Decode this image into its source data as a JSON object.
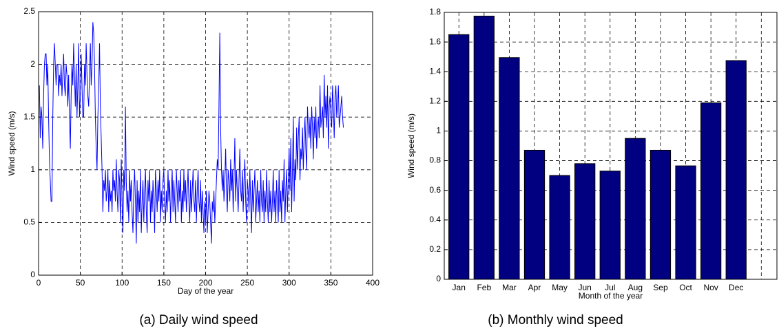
{
  "chart_data": [
    {
      "type": "line",
      "caption": "(a) Daily wind speed",
      "x_label": "Day of the year",
      "y_label": "Wind speed (m/s)",
      "xlim": [
        0,
        400
      ],
      "xticks": [
        0,
        50,
        100,
        150,
        200,
        250,
        300,
        350,
        400
      ],
      "ylim": [
        0,
        2.5
      ],
      "yticks": [
        0,
        0.5,
        1,
        1.5,
        2,
        2.5
      ],
      "grid": true,
      "color": "#0000ff",
      "x": [
        1,
        2,
        3,
        4,
        5,
        6,
        7,
        8,
        9,
        10,
        11,
        12,
        13,
        14,
        15,
        16,
        17,
        18,
        19,
        20,
        21,
        22,
        23,
        24,
        25,
        26,
        27,
        28,
        29,
        30,
        31,
        32,
        33,
        34,
        35,
        36,
        37,
        38,
        39,
        40,
        41,
        42,
        43,
        44,
        45,
        46,
        47,
        48,
        49,
        50,
        51,
        52,
        53,
        54,
        55,
        56,
        57,
        58,
        59,
        60,
        61,
        62,
        63,
        64,
        65,
        66,
        67,
        68,
        69,
        70,
        71,
        72,
        73,
        74,
        75,
        76,
        77,
        78,
        79,
        80,
        81,
        82,
        83,
        84,
        85,
        86,
        87,
        88,
        89,
        90,
        91,
        92,
        93,
        94,
        95,
        96,
        97,
        98,
        99,
        100,
        101,
        102,
        103,
        104,
        105,
        106,
        107,
        108,
        109,
        110,
        111,
        112,
        113,
        114,
        115,
        116,
        117,
        118,
        119,
        120,
        121,
        122,
        123,
        124,
        125,
        126,
        127,
        128,
        129,
        130,
        131,
        132,
        133,
        134,
        135,
        136,
        137,
        138,
        139,
        140,
        141,
        142,
        143,
        144,
        145,
        146,
        147,
        148,
        149,
        150,
        151,
        152,
        153,
        154,
        155,
        156,
        157,
        158,
        159,
        160,
        161,
        162,
        163,
        164,
        165,
        166,
        167,
        168,
        169,
        170,
        171,
        172,
        173,
        174,
        175,
        176,
        177,
        178,
        179,
        180,
        181,
        182,
        183,
        184,
        185,
        186,
        187,
        188,
        189,
        190,
        191,
        192,
        193,
        194,
        195,
        196,
        197,
        198,
        199,
        200,
        201,
        202,
        203,
        204,
        205,
        206,
        207,
        208,
        209,
        210,
        211,
        212,
        213,
        214,
        215,
        216,
        217,
        218,
        219,
        220,
        221,
        222,
        223,
        224,
        225,
        226,
        227,
        228,
        229,
        230,
        231,
        232,
        233,
        234,
        235,
        236,
        237,
        238,
        239,
        240,
        241,
        242,
        243,
        244,
        245,
        246,
        247,
        248,
        249,
        250,
        251,
        252,
        253,
        254,
        255,
        256,
        257,
        258,
        259,
        260,
        261,
        262,
        263,
        264,
        265,
        266,
        267,
        268,
        269,
        270,
        271,
        272,
        273,
        274,
        275,
        276,
        277,
        278,
        279,
        280,
        281,
        282,
        283,
        284,
        285,
        286,
        287,
        288,
        289,
        290,
        291,
        292,
        293,
        294,
        295,
        296,
        297,
        298,
        299,
        300,
        301,
        302,
        303,
        304,
        305,
        306,
        307,
        308,
        309,
        310,
        311,
        312,
        313,
        314,
        315,
        316,
        317,
        318,
        319,
        320,
        321,
        322,
        323,
        324,
        325,
        326,
        327,
        328,
        329,
        330,
        331,
        332,
        333,
        334,
        335,
        336,
        337,
        338,
        339,
        340,
        341,
        342,
        343,
        344,
        345,
        346,
        347,
        348,
        349,
        350,
        351,
        352,
        353,
        354,
        355,
        356,
        357,
        358,
        359,
        360,
        361,
        362,
        363,
        364,
        365
      ],
      "values": [
        1.8,
        1.3,
        1.6,
        1.5,
        1.2,
        1.7,
        2.0,
        2.1,
        2.1,
        1.8,
        2.0,
        1.5,
        1.1,
        0.9,
        0.7,
        0.7,
        1.5,
        2.0,
        2.2,
        2.0,
        1.8,
        2.0,
        2.0,
        1.7,
        1.9,
        1.8,
        2.0,
        1.7,
        1.9,
        2.1,
        1.8,
        1.7,
        2.0,
        1.9,
        1.6,
        1.9,
        1.5,
        1.2,
        1.7,
        2.0,
        1.8,
        2.2,
        1.9,
        1.6,
        2.0,
        1.5,
        1.8,
        2.2,
        1.5,
        1.7,
        2.1,
        1.8,
        1.5,
        1.5,
        2.0,
        1.8,
        2.2,
        1.9,
        1.7,
        1.6,
        1.9,
        2.2,
        1.8,
        2.0,
        2.4,
        2.3,
        2.0,
        1.5,
        1.2,
        1.0,
        1.5,
        1.8,
        2.2,
        1.6,
        1.3,
        1.0,
        0.6,
        0.9,
        0.8,
        1.0,
        0.7,
        0.8,
        1.0,
        0.6,
        0.9,
        0.7,
        0.8,
        0.6,
        1.0,
        0.8,
        0.9,
        0.7,
        1.1,
        0.8,
        0.6,
        1.0,
        0.9,
        0.5,
        1.1,
        0.7,
        0.4,
        1.0,
        0.8,
        1.6,
        0.9,
        0.6,
        0.8,
        0.5,
        1.0,
        0.7,
        0.9,
        0.6,
        0.4,
        0.8,
        1.0,
        0.7,
        0.3,
        0.9,
        0.5,
        0.8,
        0.6,
        1.0,
        0.4,
        0.7,
        0.9,
        0.5,
        0.8,
        1.0,
        0.6,
        0.4,
        0.9,
        0.7,
        1.0,
        0.5,
        0.8,
        0.6,
        0.9,
        0.7,
        0.4,
        1.0,
        0.8,
        0.6,
        0.9,
        0.7,
        1.0,
        0.5,
        0.8,
        0.6,
        0.9,
        1.0,
        0.7,
        0.5,
        0.8,
        0.6,
        1.0,
        0.7,
        0.9,
        0.5,
        0.8,
        1.0,
        0.6,
        0.9,
        0.7,
        0.5,
        1.0,
        0.8,
        0.6,
        0.9,
        0.7,
        1.0,
        0.5,
        0.8,
        0.6,
        1.0,
        0.7,
        0.9,
        0.6,
        0.8,
        1.0,
        0.7,
        0.5,
        0.9,
        0.6,
        0.8,
        1.0,
        0.7,
        0.6,
        0.9,
        0.5,
        0.8,
        1.0,
        0.7,
        0.6,
        0.9,
        0.5,
        0.8,
        0.6,
        0.4,
        0.7,
        0.5,
        0.8,
        0.4,
        0.6,
        0.8,
        0.7,
        0.5,
        0.3,
        0.7,
        0.6,
        0.8,
        0.5,
        0.7,
        0.9,
        1.1,
        1.0,
        1.6,
        2.3,
        1.4,
        1.0,
        0.8,
        1.0,
        0.7,
        0.9,
        1.2,
        0.8,
        0.6,
        1.0,
        0.9,
        0.7,
        1.1,
        0.8,
        1.0,
        0.6,
        0.9,
        1.3,
        0.7,
        1.0,
        0.8,
        0.6,
        0.9,
        1.2,
        0.8,
        0.7,
        1.0,
        0.6,
        0.9,
        1.1,
        0.7,
        0.5,
        0.9,
        0.8,
        0.6,
        1.0,
        0.7,
        0.4,
        0.9,
        0.6,
        0.8,
        1.0,
        0.5,
        0.7,
        0.9,
        0.6,
        0.8,
        0.5,
        1.0,
        0.7,
        0.6,
        0.9,
        0.5,
        0.8,
        0.6,
        1.0,
        0.7,
        0.5,
        0.9,
        0.6,
        0.8,
        0.5,
        0.7,
        1.0,
        0.6,
        0.8,
        0.5,
        0.9,
        0.7,
        0.5,
        1.0,
        0.6,
        0.8,
        0.5,
        0.9,
        0.7,
        1.1,
        0.5,
        0.8,
        1.0,
        0.6,
        0.9,
        1.2,
        0.8,
        1.3,
        0.6,
        1.0,
        1.5,
        0.7,
        1.1,
        0.9,
        1.4,
        1.0,
        1.3,
        1.5,
        0.9,
        1.2,
        1.1,
        1.4,
        1.0,
        1.3,
        1.5,
        1.2,
        1.0,
        1.6,
        1.4,
        1.3,
        1.5,
        1.2,
        1.6,
        1.4,
        1.1,
        1.5,
        1.3,
        1.6,
        1.2,
        1.4,
        1.5,
        1.3,
        1.8,
        1.4,
        1.5,
        1.6,
        1.3,
        1.9,
        1.5,
        1.7,
        1.4,
        1.8,
        1.2,
        1.6,
        1.7,
        1.5,
        1.4,
        1.8,
        1.6,
        1.3,
        1.7,
        1.8,
        1.5,
        1.6,
        1.8,
        1.4,
        1.5,
        1.6,
        1.7,
        1.5,
        1.4
      ]
    },
    {
      "type": "bar",
      "caption": "(b) Monthly wind speed",
      "x_label": "Month of the year",
      "y_label": "Wind speed (m/s)",
      "categories": [
        "Jan",
        "Feb",
        "Mar",
        "Apr",
        "May",
        "Jun",
        "Jul",
        "Aug",
        "Sep",
        "Oct",
        "Nov",
        "Dec"
      ],
      "values": [
        1.65,
        1.775,
        1.495,
        0.87,
        0.7,
        0.78,
        0.73,
        0.95,
        0.87,
        0.765,
        1.19,
        1.475
      ],
      "ylim": [
        0,
        1.8
      ],
      "yticks": [
        0,
        0.2,
        0.4,
        0.6,
        0.8,
        1,
        1.2,
        1.4,
        1.6,
        1.8
      ],
      "grid": true,
      "color": "#000080"
    }
  ]
}
